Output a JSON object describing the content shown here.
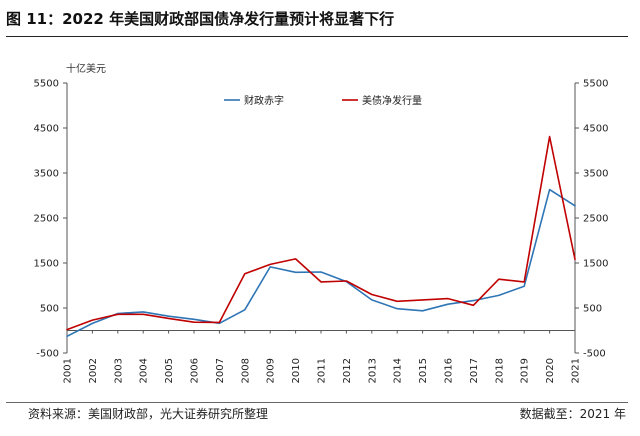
{
  "header": {
    "title": "图 11：2022 年美国财政部国债净发行量预计将显著下行"
  },
  "footer": {
    "source": "资料来源：美国财政部，光大证券研究所整理",
    "cutoff": "数据截至：2021 年"
  },
  "chart_data": {
    "type": "line",
    "title": "",
    "unit_label": "十亿美元",
    "xlabel": "",
    "ylabel": "",
    "x": [
      "2001",
      "2002",
      "2003",
      "2004",
      "2005",
      "2006",
      "2007",
      "2008",
      "2009",
      "2010",
      "2011",
      "2012",
      "2013",
      "2014",
      "2015",
      "2016",
      "2017",
      "2018",
      "2019",
      "2020",
      "2021"
    ],
    "ylim": [
      -500,
      5500
    ],
    "yticks": [
      -500,
      500,
      1500,
      2500,
      3500,
      4500,
      5500
    ],
    "axes": "dual y-axis with identical scale on left and right",
    "grid": false,
    "legend_position": "top-center",
    "series": [
      {
        "name": "财政赤字",
        "color": "#2e75b6",
        "values": [
          -128,
          158,
          378,
          413,
          318,
          248,
          161,
          459,
          1413,
          1294,
          1300,
          1087,
          680,
          485,
          438,
          585,
          665,
          779,
          984,
          3132,
          2772
        ]
      },
      {
        "name": "美债净发行量",
        "color": "#c00000",
        "values": [
          20,
          230,
          360,
          360,
          270,
          185,
          180,
          1260,
          1470,
          1590,
          1080,
          1100,
          800,
          650,
          680,
          710,
          560,
          1140,
          1080,
          4310,
          1580
        ]
      }
    ]
  }
}
